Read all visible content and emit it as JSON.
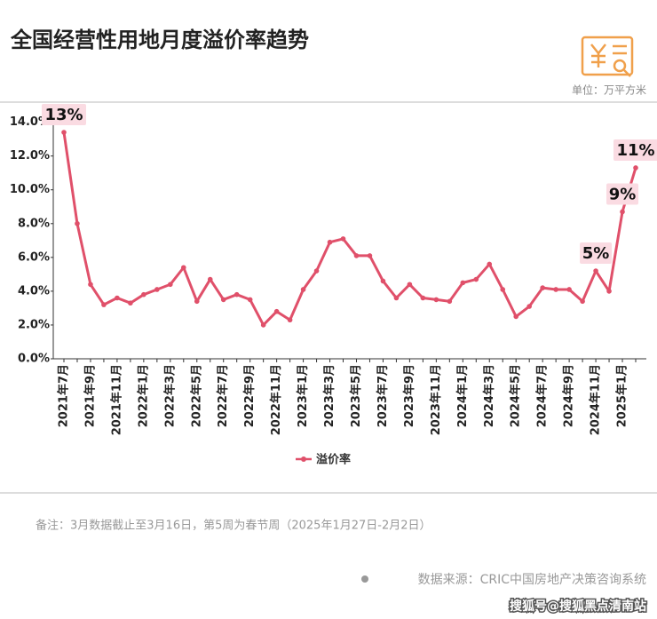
{
  "chart_data": {
    "type": "line",
    "title": "全国经营性用地月度溢价率趋势",
    "unit_note": "单位：万平方米",
    "categories": [
      "2021年7月",
      null,
      "2021年9月",
      null,
      "2021年11月",
      null,
      "2022年1月",
      null,
      "2022年3月",
      null,
      "2022年5月",
      null,
      "2022年7月",
      null,
      "2022年9月",
      null,
      "2022年11月",
      null,
      "2023年1月",
      null,
      "2023年3月",
      null,
      "2023年5月",
      null,
      "2023年7月",
      null,
      "2023年9月",
      null,
      "2023年11月",
      null,
      "2024年1月",
      null,
      "2024年3月",
      null,
      "2024年5月",
      null,
      "2024年7月",
      null,
      "2024年9月",
      null,
      "2024年11月",
      null,
      "2025年1月",
      null
    ],
    "series": [
      {
        "name": "溢价率",
        "color": "#e0506a",
        "values": [
          13.4,
          8.0,
          4.4,
          3.2,
          3.6,
          3.3,
          3.8,
          4.1,
          4.4,
          5.4,
          3.4,
          4.7,
          3.5,
          3.8,
          3.5,
          2.0,
          2.8,
          2.3,
          4.1,
          5.2,
          6.9,
          7.1,
          6.1,
          6.1,
          4.6,
          3.6,
          4.4,
          3.6,
          3.5,
          3.4,
          4.5,
          4.7,
          5.6,
          4.1,
          2.5,
          3.1,
          4.2,
          4.1,
          4.1,
          3.4,
          5.2,
          4.0,
          8.7,
          11.3
        ],
        "value_labels": [
          "13%",
          null,
          null,
          null,
          null,
          null,
          null,
          null,
          null,
          null,
          null,
          null,
          null,
          null,
          null,
          null,
          null,
          null,
          null,
          null,
          null,
          null,
          null,
          null,
          null,
          null,
          null,
          null,
          null,
          null,
          null,
          null,
          null,
          null,
          null,
          null,
          null,
          null,
          null,
          null,
          "5%",
          null,
          "9%",
          "11%"
        ]
      }
    ],
    "ylim": [
      0,
      14.4
    ],
    "yticks": [
      {
        "value": 0,
        "label": "0.0%"
      },
      {
        "value": 2,
        "label": "2.0%"
      },
      {
        "value": 4,
        "label": "4.0%"
      },
      {
        "value": 6,
        "label": "6.0%"
      },
      {
        "value": 8,
        "label": "8.0%"
      },
      {
        "value": 10,
        "label": "10.0%"
      },
      {
        "value": 12,
        "label": "12.0%"
      },
      {
        "value": 14,
        "label": "14.0%"
      }
    ],
    "note": "备注：3月数据截止至3月16日，第5周为春节周（2025年1月27日-2月2日）",
    "source": "数据来源：CRIC中国房地产决策咨询系统",
    "watermark": "搜狐号@搜狐黑点清南站"
  }
}
